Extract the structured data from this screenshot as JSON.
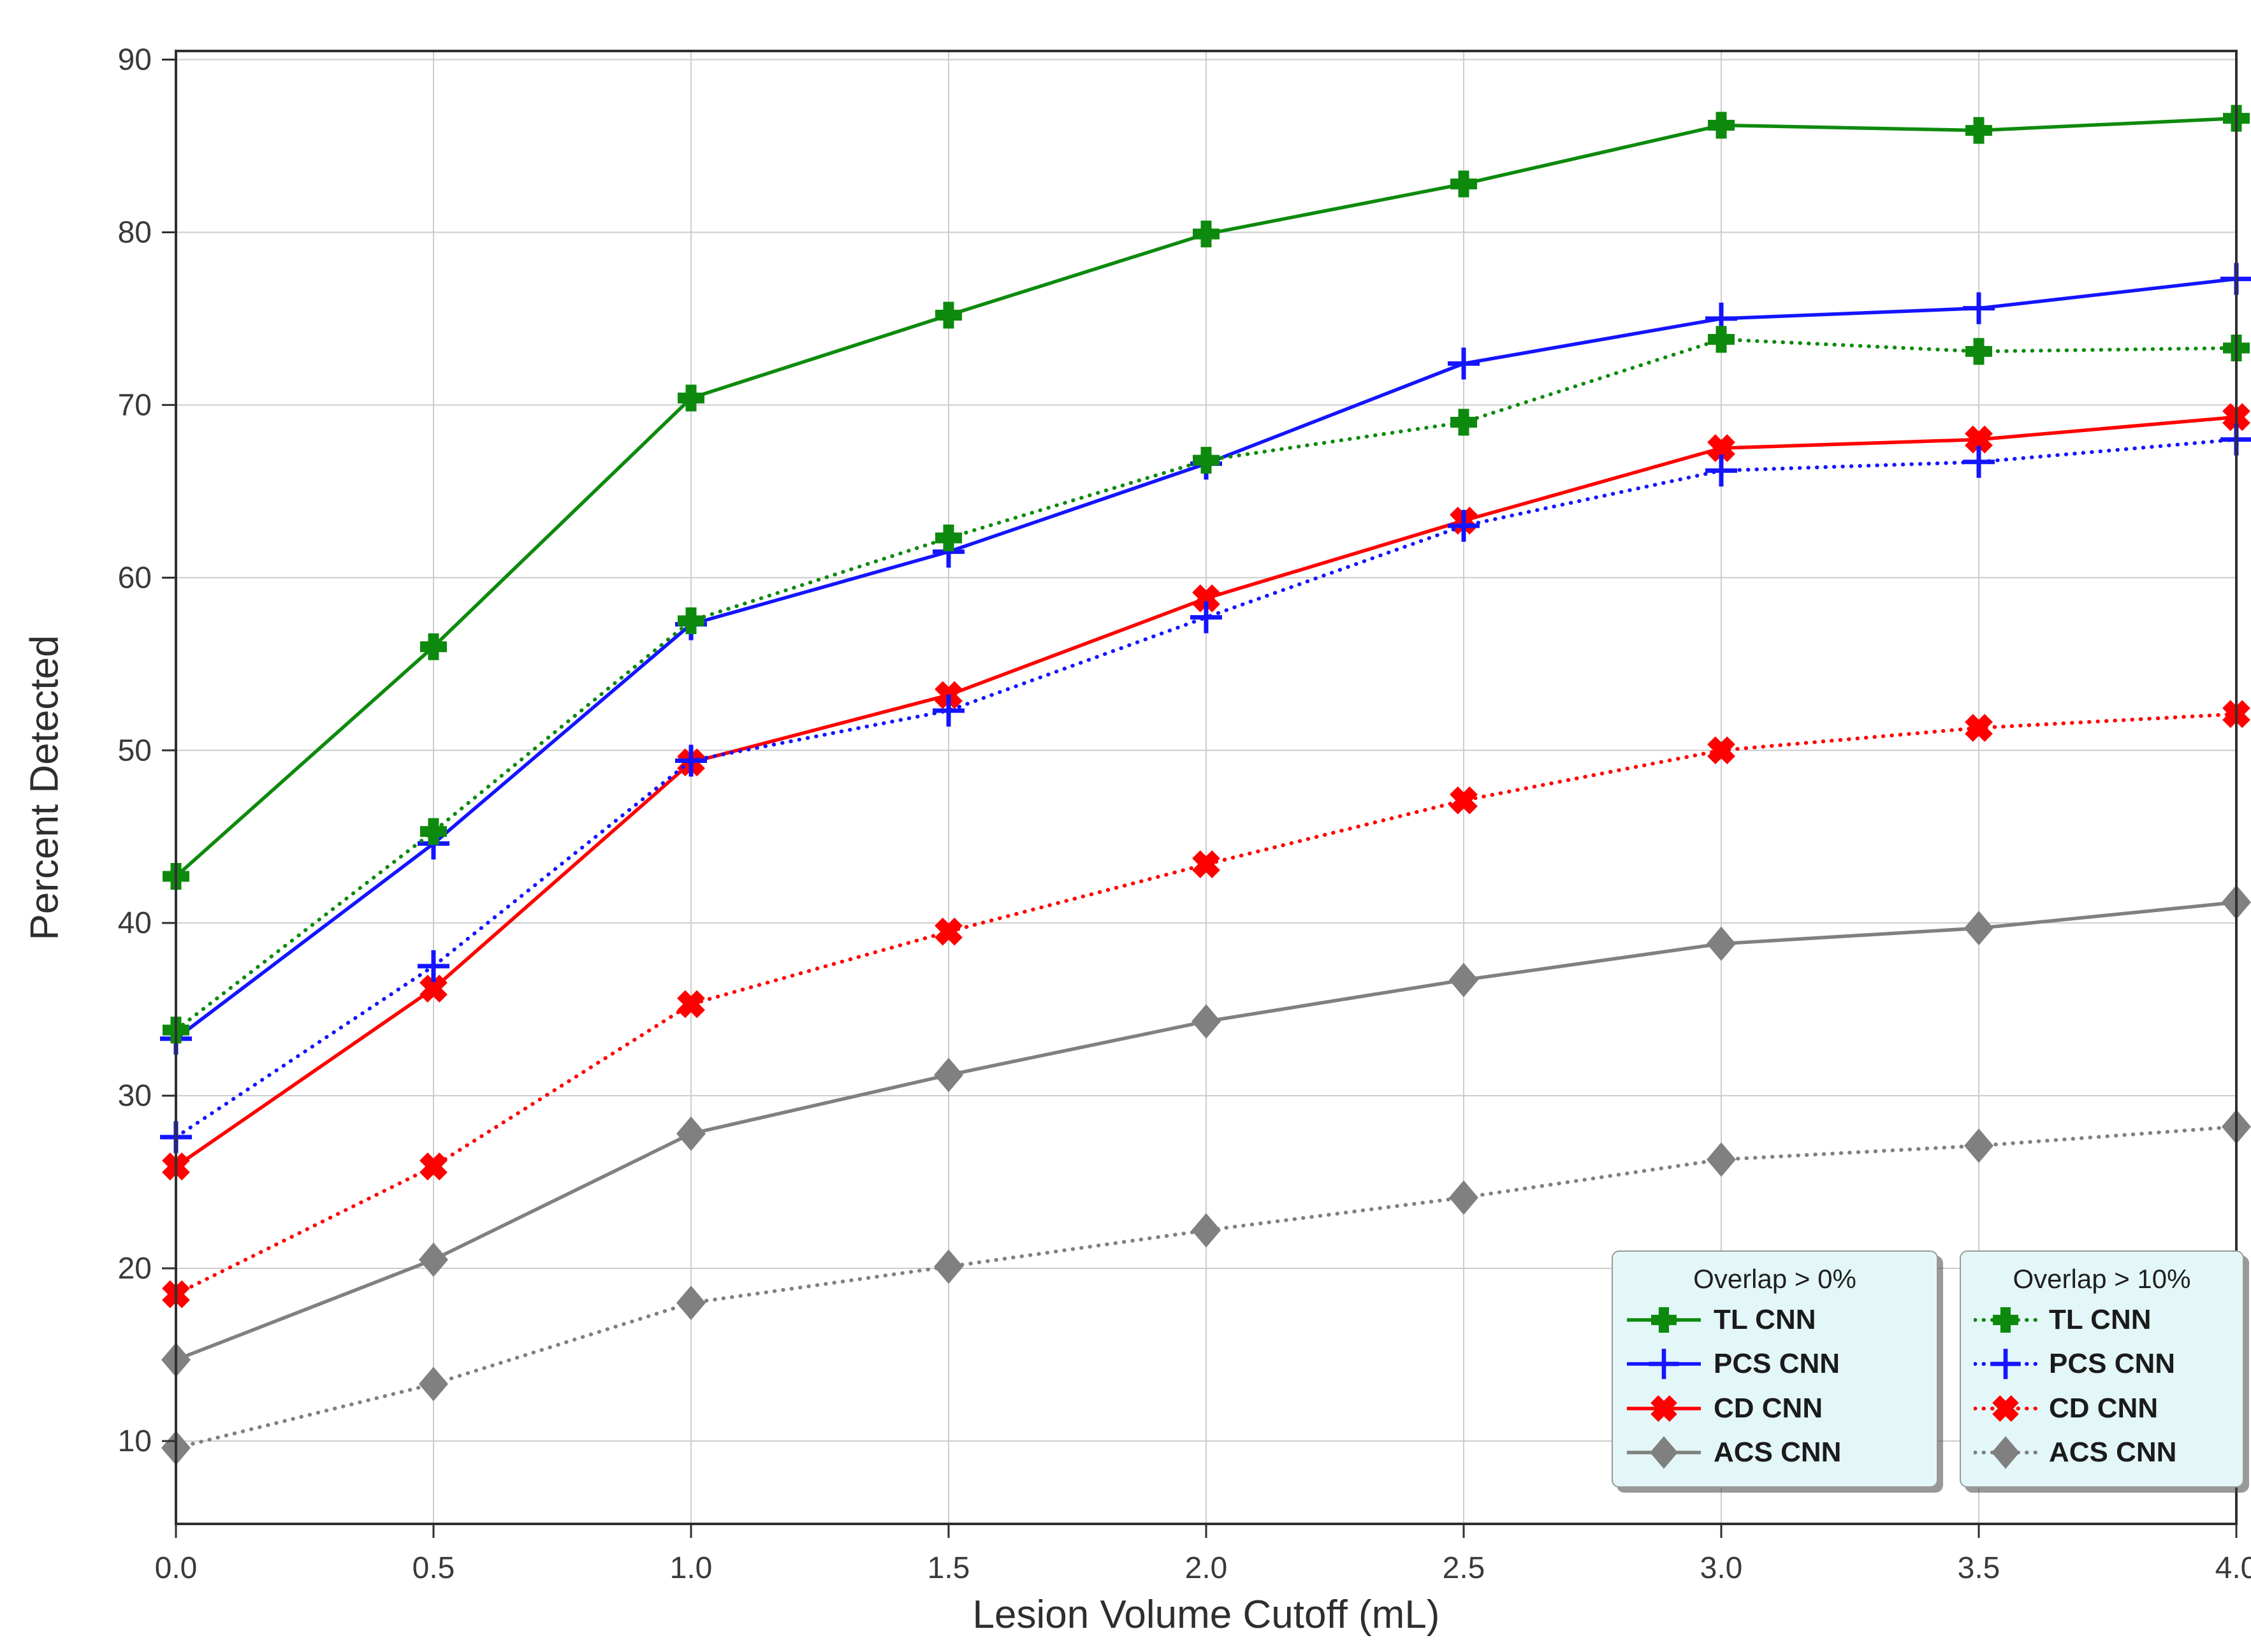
{
  "chart_data": {
    "type": "line",
    "title": "",
    "xlabel": "Lesion Volume Cutoff (mL)",
    "ylabel": "Percent Detected",
    "x": [
      0.0,
      0.5,
      1.0,
      1.5,
      2.0,
      2.5,
      3.0,
      3.5,
      4.0
    ],
    "x_tick_labels": [
      "0.0",
      "0.5",
      "1.0",
      "1.5",
      "2.0",
      "2.5",
      "3.0",
      "3.5",
      "4.0"
    ],
    "y_ticks": [
      10,
      20,
      30,
      40,
      50,
      60,
      70,
      80,
      90
    ],
    "xlim": [
      0.0,
      4.0
    ],
    "ylim": [
      5.2,
      90.5
    ],
    "grid": true,
    "legend_position": "lower right, two boxes side by side",
    "legends": [
      {
        "title": "Overlap > 0%",
        "entries": [
          "TL CNN",
          "PCS CNN",
          "CD CNN",
          "ACS CNN"
        ]
      },
      {
        "title": "Overlap > 10%",
        "entries": [
          "TL CNN",
          "PCS CNN",
          "CD CNN",
          "ACS CNN"
        ]
      }
    ],
    "series": [
      {
        "name": "TL CNN",
        "legend_group": "Overlap > 0%",
        "color": "#0d8a0d",
        "linestyle": "solid",
        "marker": "plus-filled",
        "values": [
          42.7,
          56.0,
          70.4,
          75.2,
          79.9,
          82.8,
          86.2,
          85.9,
          86.6
        ]
      },
      {
        "name": "PCS CNN",
        "legend_group": "Overlap > 0%",
        "color": "#1414ff",
        "linestyle": "solid",
        "marker": "plus-thin",
        "values": [
          33.3,
          44.6,
          57.3,
          61.5,
          66.6,
          72.4,
          75.0,
          75.6,
          77.3
        ]
      },
      {
        "name": "CD CNN",
        "legend_group": "Overlap > 0%",
        "color": "#ff0000",
        "linestyle": "solid",
        "marker": "x-filled",
        "values": [
          25.9,
          36.2,
          49.3,
          53.2,
          58.8,
          63.3,
          67.5,
          68.0,
          69.3
        ]
      },
      {
        "name": "ACS CNN",
        "legend_group": "Overlap > 0%",
        "color": "#808080",
        "linestyle": "solid",
        "marker": "diamond",
        "values": [
          14.7,
          20.5,
          27.8,
          31.2,
          34.3,
          36.7,
          38.8,
          39.7,
          41.2
        ]
      },
      {
        "name": "TL CNN",
        "legend_group": "Overlap > 10%",
        "color": "#0d8a0d",
        "linestyle": "dotted",
        "marker": "plus-filled",
        "values": [
          33.8,
          45.3,
          57.5,
          62.3,
          66.8,
          69.0,
          73.8,
          73.1,
          73.3
        ]
      },
      {
        "name": "PCS CNN",
        "legend_group": "Overlap > 10%",
        "color": "#1414ff",
        "linestyle": "dotted",
        "marker": "plus-thin",
        "values": [
          27.6,
          37.5,
          49.4,
          52.3,
          57.7,
          63.0,
          66.2,
          66.7,
          68.0
        ]
      },
      {
        "name": "CD CNN",
        "legend_group": "Overlap > 10%",
        "color": "#ff0000",
        "linestyle": "dotted",
        "marker": "x-filled",
        "values": [
          18.5,
          25.9,
          35.3,
          39.5,
          43.4,
          47.1,
          50.0,
          51.3,
          52.1
        ]
      },
      {
        "name": "ACS CNN",
        "legend_group": "Overlap > 10%",
        "color": "#808080",
        "linestyle": "dotted",
        "marker": "diamond",
        "values": [
          9.6,
          13.3,
          18.0,
          20.1,
          22.2,
          24.1,
          26.3,
          27.1,
          28.2
        ]
      }
    ],
    "colors": {
      "tl_cnn": "#0d8a0d",
      "pcs_cnn": "#1414ff",
      "cd_cnn": "#ff0000",
      "acs_cnn": "#808080",
      "grid": "#cccccc",
      "spine": "#2f2f2f",
      "tick_label": "#3a3a3a",
      "legend_background": "#e4f7f8",
      "legend_border": "#9a9a9a"
    }
  }
}
